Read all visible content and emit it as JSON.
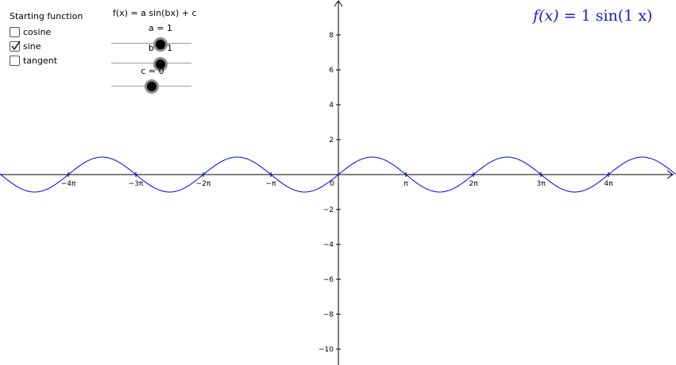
{
  "panel": {
    "title": "Starting function",
    "checkboxes": [
      {
        "label": "cosine",
        "checked": false
      },
      {
        "label": "sine",
        "checked": true
      },
      {
        "label": "tangent",
        "checked": false
      }
    ]
  },
  "sliders": {
    "heading": "f(x) = a sin(bx) + c",
    "a": {
      "label": "a = 1",
      "value": 1
    },
    "b": {
      "label": "b = 1",
      "value": 1
    },
    "c": {
      "label": "c = 0",
      "value": 0
    }
  },
  "formula": {
    "lhs": "f(x)",
    "eq": " = 1 ",
    "rhs": "sin(1 x)"
  },
  "axes": {
    "x_ticks": [
      "−4π",
      "−3π",
      "−2π",
      "−π",
      "0",
      "π",
      "2π",
      "3π",
      "4π"
    ],
    "y_ticks": [
      "8",
      "6",
      "4",
      "2",
      "−2",
      "−4",
      "−6",
      "−8",
      "−10"
    ]
  },
  "colors": {
    "curve": "#0000ff",
    "formula": "#1a1ad6"
  }
}
